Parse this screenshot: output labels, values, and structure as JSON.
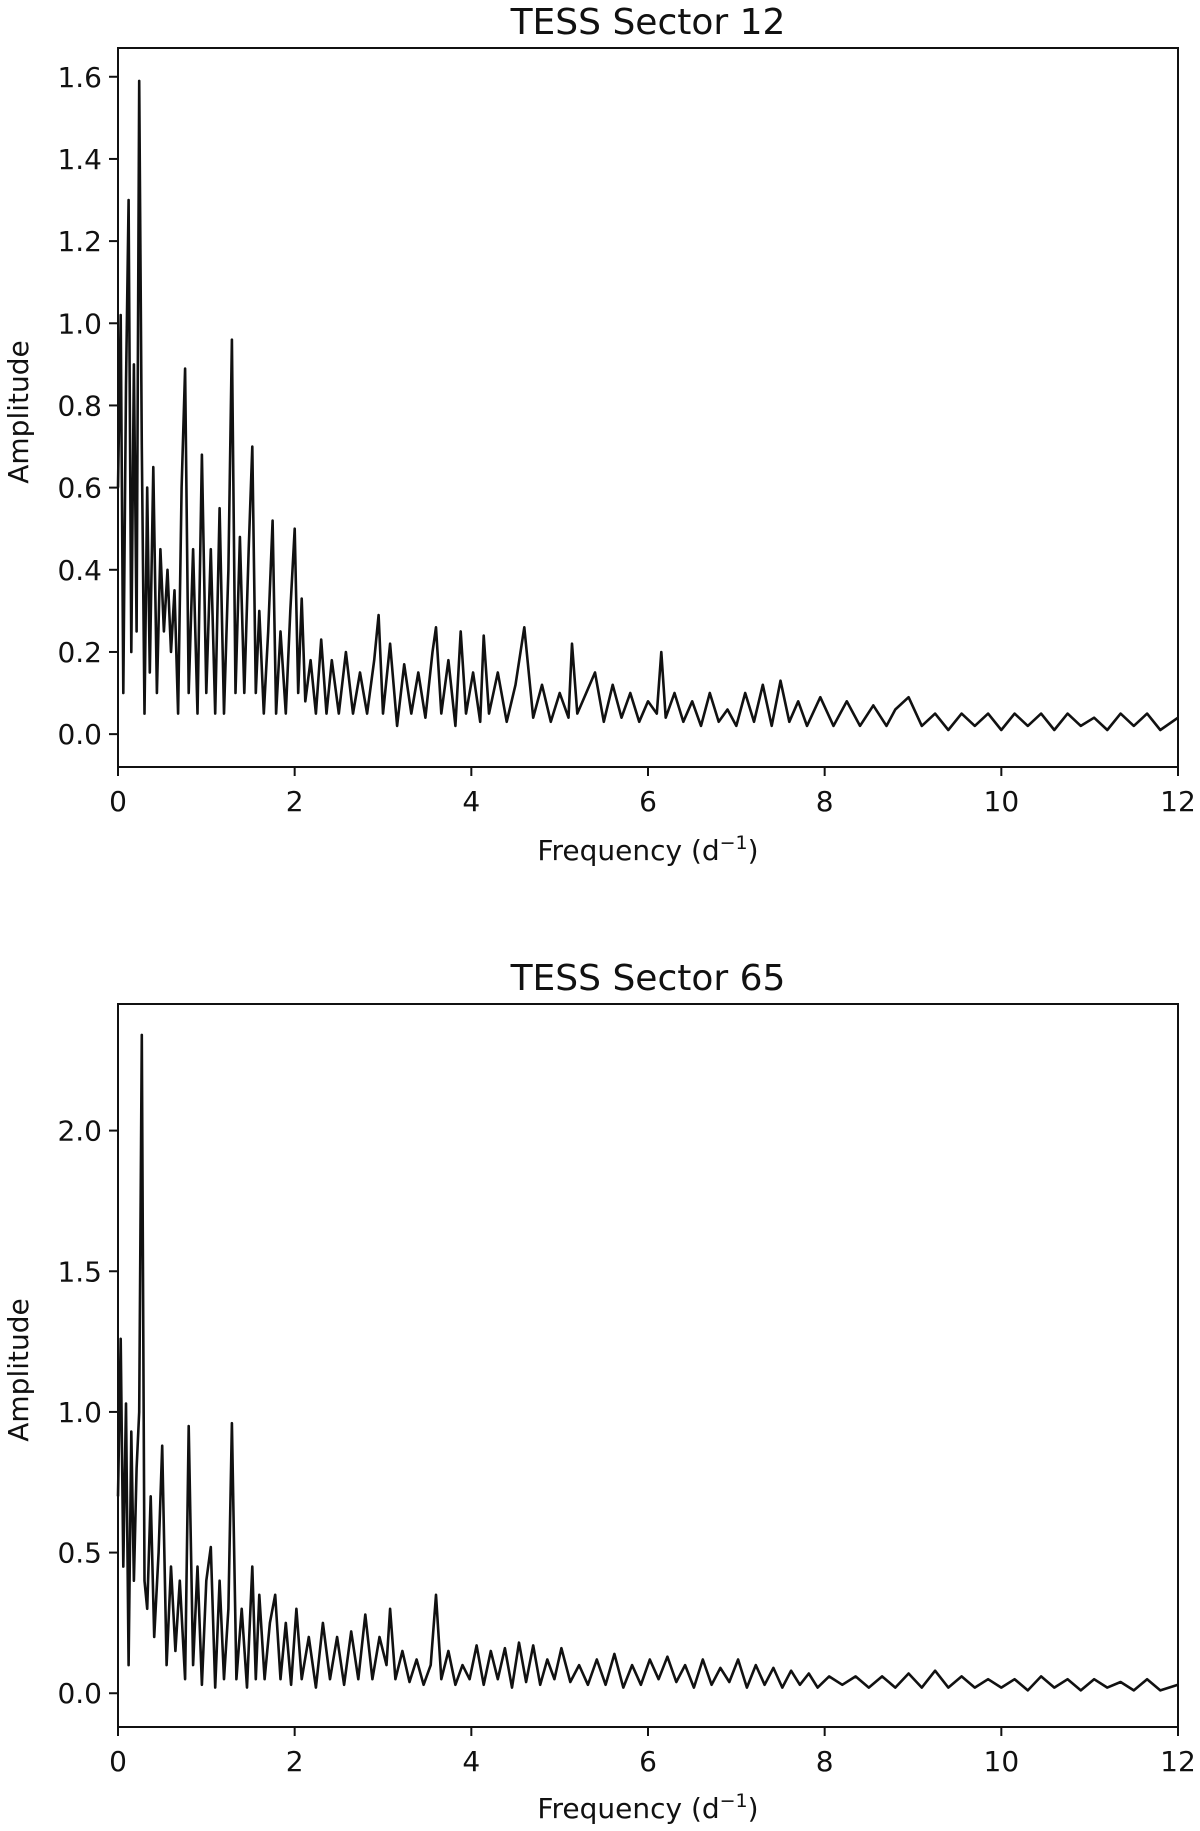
{
  "chart_data": [
    {
      "type": "line",
      "title": "TESS Sector 12",
      "xlabel": "Frequency (d",
      "xlabel_sup": "−1",
      "xlabel_close": ")",
      "ylabel": "Amplitude",
      "xlim": [
        0,
        12
      ],
      "ylim": [
        -0.08,
        1.67
      ],
      "xticks": [
        0,
        2,
        4,
        6,
        8,
        10,
        12
      ],
      "xtick_labels": [
        "0",
        "2",
        "4",
        "6",
        "8",
        "10",
        "12"
      ],
      "yticks": [
        0.0,
        0.2,
        0.4,
        0.6,
        0.8,
        1.0,
        1.2,
        1.4,
        1.6
      ],
      "ytick_labels": [
        "0.0",
        "0.2",
        "0.4",
        "0.6",
        "0.8",
        "1.0",
        "1.2",
        "1.4",
        "1.6"
      ],
      "grid": false,
      "line_color": "#111111",
      "series": [
        {
          "x": [
            0.0,
            0.03,
            0.06,
            0.09,
            0.12,
            0.15,
            0.18,
            0.21,
            0.24,
            0.27,
            0.3,
            0.33,
            0.36,
            0.4,
            0.44,
            0.48,
            0.52,
            0.56,
            0.6,
            0.64,
            0.68,
            0.72,
            0.76,
            0.8,
            0.85,
            0.9,
            0.95,
            1.0,
            1.05,
            1.1,
            1.15,
            1.2,
            1.25,
            1.29,
            1.33,
            1.38,
            1.43,
            1.48,
            1.52,
            1.56,
            1.6,
            1.65,
            1.7,
            1.75,
            1.79,
            1.84,
            1.9,
            1.95,
            2.0,
            2.04,
            2.08,
            2.12,
            2.18,
            2.24,
            2.3,
            2.36,
            2.42,
            2.5,
            2.58,
            2.66,
            2.74,
            2.82,
            2.9,
            2.95,
            3.0,
            3.08,
            3.16,
            3.24,
            3.32,
            3.4,
            3.48,
            3.56,
            3.6,
            3.66,
            3.74,
            3.82,
            3.88,
            3.94,
            4.02,
            4.1,
            4.14,
            4.2,
            4.3,
            4.4,
            4.5,
            4.6,
            4.7,
            4.8,
            4.9,
            5.0,
            5.1,
            5.14,
            5.2,
            5.3,
            5.4,
            5.5,
            5.6,
            5.7,
            5.8,
            5.9,
            6.0,
            6.1,
            6.15,
            6.2,
            6.3,
            6.4,
            6.5,
            6.6,
            6.7,
            6.8,
            6.9,
            7.0,
            7.1,
            7.2,
            7.3,
            7.4,
            7.5,
            7.6,
            7.7,
            7.8,
            7.95,
            8.1,
            8.25,
            8.4,
            8.55,
            8.7,
            8.8,
            8.95,
            9.1,
            9.25,
            9.4,
            9.55,
            9.7,
            9.85,
            10.0,
            10.15,
            10.3,
            10.45,
            10.6,
            10.75,
            10.9,
            11.05,
            11.2,
            11.35,
            11.5,
            11.65,
            11.8,
            12.0
          ],
          "y": [
            0.6,
            1.02,
            0.1,
            0.85,
            1.3,
            0.2,
            0.9,
            0.25,
            1.59,
            0.7,
            0.05,
            0.6,
            0.15,
            0.65,
            0.1,
            0.45,
            0.25,
            0.4,
            0.2,
            0.35,
            0.05,
            0.6,
            0.89,
            0.1,
            0.45,
            0.05,
            0.68,
            0.1,
            0.45,
            0.05,
            0.55,
            0.05,
            0.4,
            0.96,
            0.1,
            0.48,
            0.1,
            0.45,
            0.7,
            0.1,
            0.3,
            0.05,
            0.25,
            0.52,
            0.05,
            0.25,
            0.05,
            0.3,
            0.5,
            0.1,
            0.33,
            0.08,
            0.18,
            0.05,
            0.23,
            0.05,
            0.18,
            0.05,
            0.2,
            0.05,
            0.15,
            0.05,
            0.18,
            0.29,
            0.05,
            0.22,
            0.02,
            0.17,
            0.05,
            0.15,
            0.04,
            0.2,
            0.26,
            0.05,
            0.18,
            0.02,
            0.25,
            0.05,
            0.15,
            0.03,
            0.24,
            0.05,
            0.15,
            0.03,
            0.12,
            0.26,
            0.04,
            0.12,
            0.03,
            0.1,
            0.04,
            0.22,
            0.05,
            0.1,
            0.15,
            0.03,
            0.12,
            0.04,
            0.1,
            0.03,
            0.08,
            0.05,
            0.2,
            0.04,
            0.1,
            0.03,
            0.08,
            0.02,
            0.1,
            0.03,
            0.06,
            0.02,
            0.1,
            0.03,
            0.12,
            0.02,
            0.13,
            0.03,
            0.08,
            0.02,
            0.09,
            0.02,
            0.08,
            0.02,
            0.07,
            0.02,
            0.06,
            0.09,
            0.02,
            0.05,
            0.01,
            0.05,
            0.02,
            0.05,
            0.01,
            0.05,
            0.02,
            0.05,
            0.01,
            0.05,
            0.02,
            0.04,
            0.01,
            0.05,
            0.02,
            0.05,
            0.01,
            0.04
          ]
        }
      ]
    },
    {
      "type": "line",
      "title": "TESS Sector 65",
      "xlabel": "Frequency (d",
      "xlabel_sup": "−1",
      "xlabel_close": ")",
      "ylabel": "Amplitude",
      "xlim": [
        0,
        12
      ],
      "ylim": [
        -0.12,
        2.45
      ],
      "xticks": [
        0,
        2,
        4,
        6,
        8,
        10,
        12
      ],
      "xtick_labels": [
        "0",
        "2",
        "4",
        "6",
        "8",
        "10",
        "12"
      ],
      "yticks": [
        0.0,
        0.5,
        1.0,
        1.5,
        2.0
      ],
      "ytick_labels": [
        "0.0",
        "0.5",
        "1.0",
        "1.5",
        "2.0"
      ],
      "grid": false,
      "line_color": "#111111",
      "series": [
        {
          "x": [
            0.0,
            0.03,
            0.06,
            0.09,
            0.12,
            0.15,
            0.18,
            0.21,
            0.24,
            0.27,
            0.3,
            0.33,
            0.37,
            0.41,
            0.46,
            0.5,
            0.55,
            0.6,
            0.65,
            0.7,
            0.76,
            0.8,
            0.85,
            0.9,
            0.95,
            1.0,
            1.05,
            1.1,
            1.15,
            1.2,
            1.25,
            1.29,
            1.34,
            1.4,
            1.46,
            1.52,
            1.56,
            1.6,
            1.66,
            1.72,
            1.78,
            1.84,
            1.9,
            1.96,
            2.02,
            2.08,
            2.16,
            2.24,
            2.32,
            2.4,
            2.48,
            2.56,
            2.64,
            2.72,
            2.8,
            2.88,
            2.96,
            3.04,
            3.08,
            3.14,
            3.22,
            3.3,
            3.38,
            3.46,
            3.54,
            3.6,
            3.66,
            3.74,
            3.82,
            3.9,
            3.98,
            4.06,
            4.14,
            4.22,
            4.3,
            4.38,
            4.46,
            4.54,
            4.62,
            4.7,
            4.78,
            4.86,
            4.94,
            5.02,
            5.12,
            5.22,
            5.32,
            5.42,
            5.52,
            5.62,
            5.72,
            5.82,
            5.92,
            6.02,
            6.12,
            6.22,
            6.32,
            6.42,
            6.52,
            6.62,
            6.72,
            6.82,
            6.92,
            7.02,
            7.12,
            7.22,
            7.32,
            7.42,
            7.52,
            7.62,
            7.72,
            7.82,
            7.92,
            8.05,
            8.2,
            8.35,
            8.5,
            8.65,
            8.8,
            8.95,
            9.1,
            9.25,
            9.4,
            9.55,
            9.7,
            9.85,
            10.0,
            10.15,
            10.3,
            10.45,
            10.6,
            10.75,
            10.9,
            11.05,
            11.2,
            11.35,
            11.5,
            11.65,
            11.8,
            12.0
          ],
          "y": [
            0.7,
            1.26,
            0.45,
            1.03,
            0.1,
            0.93,
            0.4,
            0.8,
            1.0,
            2.34,
            0.4,
            0.3,
            0.7,
            0.2,
            0.5,
            0.88,
            0.1,
            0.45,
            0.15,
            0.4,
            0.05,
            0.95,
            0.1,
            0.45,
            0.03,
            0.4,
            0.52,
            0.02,
            0.4,
            0.05,
            0.3,
            0.96,
            0.05,
            0.3,
            0.02,
            0.45,
            0.05,
            0.35,
            0.05,
            0.25,
            0.35,
            0.05,
            0.25,
            0.03,
            0.3,
            0.05,
            0.2,
            0.02,
            0.25,
            0.05,
            0.2,
            0.03,
            0.22,
            0.05,
            0.28,
            0.05,
            0.2,
            0.1,
            0.3,
            0.05,
            0.15,
            0.04,
            0.12,
            0.03,
            0.1,
            0.35,
            0.05,
            0.15,
            0.03,
            0.1,
            0.05,
            0.17,
            0.03,
            0.15,
            0.05,
            0.16,
            0.02,
            0.18,
            0.04,
            0.17,
            0.03,
            0.12,
            0.05,
            0.16,
            0.04,
            0.1,
            0.03,
            0.12,
            0.03,
            0.14,
            0.02,
            0.1,
            0.03,
            0.12,
            0.05,
            0.13,
            0.04,
            0.1,
            0.02,
            0.12,
            0.03,
            0.09,
            0.04,
            0.12,
            0.02,
            0.1,
            0.03,
            0.09,
            0.02,
            0.08,
            0.03,
            0.07,
            0.02,
            0.06,
            0.03,
            0.06,
            0.02,
            0.06,
            0.02,
            0.07,
            0.02,
            0.08,
            0.02,
            0.06,
            0.02,
            0.05,
            0.02,
            0.05,
            0.01,
            0.06,
            0.02,
            0.05,
            0.01,
            0.05,
            0.02,
            0.04,
            0.01,
            0.05,
            0.01,
            0.03
          ]
        }
      ]
    }
  ]
}
